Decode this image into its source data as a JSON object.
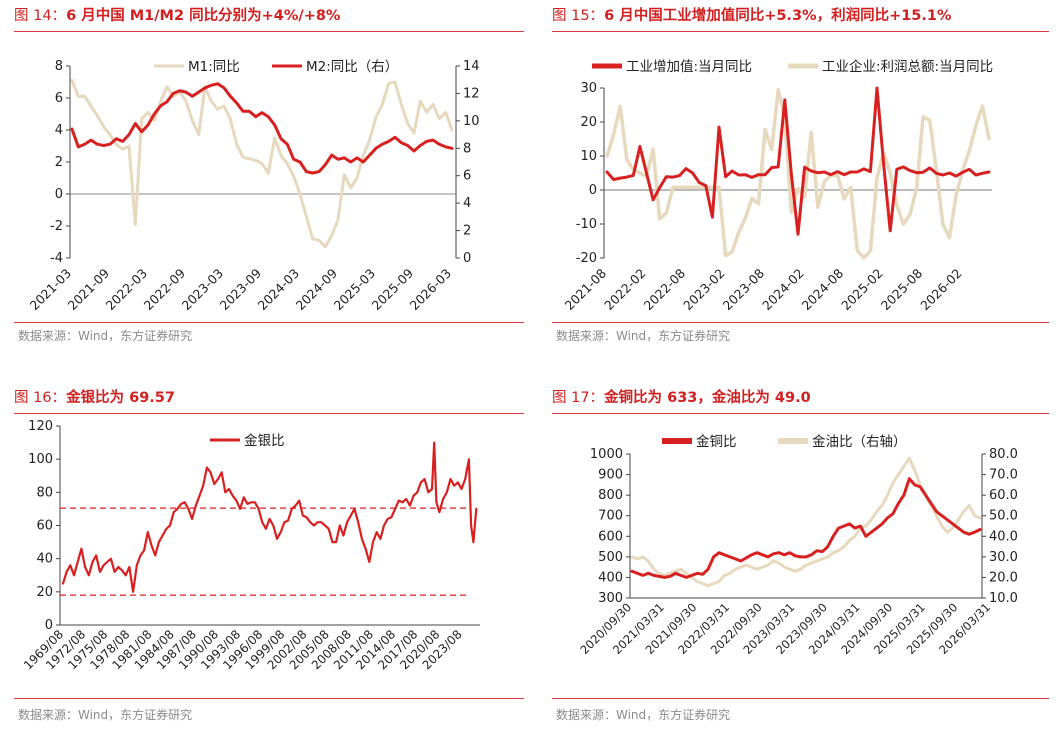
{
  "source_text": "数据来源：Wind，东方证券研究",
  "panels": [
    {
      "fig": "图 14：",
      "title": "6 月中国 M1/M2 同比分别为+4%/+8%",
      "source": "数据来源：Wind，东方证券研究"
    },
    {
      "fig": "图 15：",
      "title": "6 月中国工业增加值同比+5.3%，利润同比+15.1%",
      "source": "数据来源：Wind，东方证券研究"
    },
    {
      "fig": "图 16：",
      "title": "金银比为 69.57",
      "source": "数据来源：Wind，东方证券研究"
    },
    {
      "fig": "图 17：",
      "title": "金铜比为 633，金油比为 49.0",
      "source": "数据来源：Wind，东方证券研究"
    }
  ],
  "chart_data": [
    {
      "type": "line",
      "title": "6 月中国 M1/M2 同比分别为+4%/+8%",
      "x_ticks": [
        "2021-03",
        "2021-09",
        "2022-03",
        "2022-09",
        "2023-03",
        "2023-09",
        "2024-03",
        "2024-09",
        "2025-03",
        "2025-09",
        "2026-03"
      ],
      "ylim_left": [
        -4,
        8
      ],
      "yticks_left": [
        -4,
        -2,
        0,
        2,
        4,
        6,
        8
      ],
      "ylim_right": [
        0,
        14
      ],
      "yticks_right": [
        0,
        2,
        4,
        6,
        8,
        10,
        12,
        14
      ],
      "legend_position": "top",
      "grid": false,
      "colors": {
        "M1": "#e6d9bd",
        "M2": "#d92020"
      },
      "series": [
        {
          "name": "M1:同比",
          "axis": "left",
          "x_start": "2021-03",
          "values": [
            7.1,
            6.1,
            6.1,
            5.5,
            4.9,
            4.2,
            3.7,
            3.1,
            2.8,
            3.0,
            -1.9,
            4.7,
            5.1,
            4.6,
            5.8,
            6.7,
            6.1,
            6.4,
            5.8,
            4.6,
            3.7,
            6.7,
            5.8,
            5.3,
            5.5,
            4.7,
            3.1,
            2.3,
            2.2,
            2.1,
            1.9,
            1.3,
            3.5,
            2.4,
            1.9,
            1.1,
            0.0,
            -1.4,
            -2.8,
            -2.9,
            -3.3,
            -2.6,
            -1.6,
            1.2,
            0.4,
            1.0,
            2.4,
            3.4,
            4.8,
            5.6,
            6.9,
            7.0,
            5.6,
            4.4,
            3.8,
            5.8,
            5.1,
            5.6,
            4.7,
            5.1,
            4.0
          ]
        },
        {
          "name": "M2:同比（右）",
          "axis": "right",
          "x_start": "2021-03",
          "values": [
            9.4,
            8.1,
            8.3,
            8.6,
            8.3,
            8.2,
            8.3,
            8.7,
            8.5,
            9.0,
            9.8,
            9.2,
            9.7,
            10.5,
            11.1,
            11.4,
            12.0,
            12.2,
            12.1,
            11.8,
            12.1,
            12.4,
            12.6,
            12.7,
            12.4,
            11.8,
            11.3,
            10.7,
            10.7,
            10.3,
            10.6,
            10.3,
            9.7,
            8.7,
            8.3,
            7.2,
            7.0,
            6.3,
            6.2,
            6.3,
            6.8,
            7.5,
            7.2,
            7.3,
            7.0,
            7.3,
            7.0,
            7.5,
            8.0,
            8.3,
            8.5,
            8.8,
            8.4,
            8.2,
            7.8,
            8.2,
            8.5,
            8.6,
            8.3,
            8.1,
            8.0
          ]
        }
      ]
    },
    {
      "type": "line",
      "title": "6 月中国工业增加值同比+5.3%，利润同比+15.1%",
      "x_ticks": [
        "2021-08",
        "2022-02",
        "2022-08",
        "2023-02",
        "2023-08",
        "2024-02",
        "2024-08",
        "2025-02",
        "2025-08",
        "2026-02"
      ],
      "ylim": [
        -20,
        30
      ],
      "yticks": [
        -20,
        -10,
        0,
        10,
        20,
        30
      ],
      "legend_position": "top",
      "grid": false,
      "colors": {
        "工业增加值": "#d92020",
        "工业企业利润": "#e6d9bd"
      },
      "series": [
        {
          "name": "工业增加值:当月同比",
          "x_start": "2021-08",
          "values": [
            5.3,
            3.1,
            3.5,
            3.8,
            4.3,
            12.8,
            5.0,
            -2.9,
            0.7,
            3.9,
            3.8,
            4.2,
            6.3,
            5.0,
            2.2,
            1.3,
            -8.0,
            18.5,
            3.9,
            5.6,
            4.4,
            4.5,
            3.7,
            4.5,
            4.5,
            6.6,
            6.8,
            26.5,
            4.5,
            -13.0,
            6.7,
            5.6,
            5.1,
            5.3,
            4.5,
            5.4,
            4.5,
            5.3,
            5.3,
            6.2,
            5.4,
            31.0,
            7.7,
            -12.0,
            6.1,
            6.8,
            5.7,
            5.1,
            5.2,
            6.5,
            4.9,
            4.4,
            5.0,
            4.1,
            5.2,
            6.1,
            4.4,
            4.9,
            5.3
          ]
        },
        {
          "name": "工业企业:利润总额:当月同比",
          "x_start": "2021-08",
          "values": [
            10.0,
            16.3,
            24.6,
            9.0,
            6.0,
            5.0,
            4.0,
            12.0,
            -8.5,
            -6.8,
            0.8,
            0.8,
            0.8,
            0.8,
            0.8,
            0.8,
            0.8,
            0.8,
            -19.3,
            -18.2,
            -12.5,
            -8.3,
            -2.5,
            -4.1,
            17.8,
            11.9,
            29.5,
            21.3,
            -6.6,
            0.4,
            -2.1,
            17.0,
            -5.1,
            2.4,
            4.4,
            4.3,
            -2.6,
            0.7,
            -17.8,
            -25.1,
            -17.9,
            3.6,
            11.1,
            5.0,
            -4.5,
            -10.1,
            -7.2,
            0.4,
            21.6,
            20.5,
            6.0,
            -10.0,
            -14.0,
            -1.5,
            5.8,
            11.4,
            18.8,
            24.7,
            15.1
          ]
        }
      ]
    },
    {
      "type": "line",
      "title": "金银比为 69.57",
      "x_ticks": [
        "1969/08",
        "1972/08",
        "1975/08",
        "1978/08",
        "1981/08",
        "1984/08",
        "1987/08",
        "1990/08",
        "1993/08",
        "1996/08",
        "1999/08",
        "2002/08",
        "2005/08",
        "2008/08",
        "2011/08",
        "2014/08",
        "2017/08",
        "2020/08",
        "2023/08"
      ],
      "ylim": [
        0,
        120
      ],
      "yticks": [
        0,
        20,
        40,
        60,
        80,
        100,
        120
      ],
      "legend_position": "top",
      "grid": false,
      "reference_lines": [
        70.5,
        18.0
      ],
      "colors": {
        "金银比": "#d92020"
      },
      "series": [
        {
          "name": "金银比",
          "x_years": [
            1970.0,
            1970.5,
            1971.0,
            1971.5,
            1972.0,
            1972.5,
            1973.0,
            1973.5,
            1974.0,
            1974.5,
            1975.0,
            1975.5,
            1976.0,
            1976.5,
            1977.0,
            1977.5,
            1978.0,
            1978.5,
            1979.0,
            1979.5,
            1980.0,
            1980.5,
            1981.0,
            1981.5,
            1982.0,
            1982.5,
            1983.0,
            1983.5,
            1984.0,
            1984.5,
            1985.0,
            1985.5,
            1986.0,
            1986.5,
            1987.0,
            1987.5,
            1988.0,
            1988.5,
            1989.0,
            1989.5,
            1990.0,
            1990.5,
            1991.0,
            1991.5,
            1992.0,
            1992.5,
            1993.0,
            1993.5,
            1994.0,
            1994.5,
            1995.0,
            1995.5,
            1996.0,
            1996.5,
            1997.0,
            1997.5,
            1998.0,
            1998.5,
            1999.0,
            1999.5,
            2000.0,
            2000.5,
            2001.0,
            2001.5,
            2002.0,
            2002.5,
            2003.0,
            2003.5,
            2004.0,
            2004.5,
            2005.0,
            2005.5,
            2006.0,
            2006.5,
            2007.0,
            2007.5,
            2008.0,
            2008.5,
            2009.0,
            2009.5,
            2010.0,
            2010.5,
            2011.0,
            2011.5,
            2012.0,
            2012.5,
            2013.0,
            2013.5,
            2014.0,
            2014.5,
            2015.0,
            2015.5,
            2016.0,
            2016.5,
            2017.0,
            2017.5,
            2018.0,
            2018.5,
            2019.0,
            2019.5,
            2020.0,
            2020.3,
            2020.6,
            2021.0,
            2021.5,
            2022.0,
            2022.5,
            2023.0,
            2023.5,
            2024.0,
            2024.5,
            2025.0,
            2025.3,
            2025.6,
            2026.0
          ],
          "values": [
            25,
            32,
            36,
            30,
            38,
            46,
            35,
            30,
            38,
            42,
            32,
            36,
            38,
            40,
            32,
            35,
            33,
            30,
            35,
            20,
            36,
            42,
            45,
            56,
            48,
            42,
            50,
            54,
            58,
            60,
            68,
            70,
            73,
            74,
            70,
            64,
            72,
            78,
            84,
            95,
            92,
            85,
            88,
            92,
            80,
            82,
            78,
            75,
            70,
            77,
            73,
            74,
            74,
            70,
            62,
            58,
            64,
            60,
            52,
            56,
            62,
            63,
            70,
            72,
            75,
            66,
            65,
            62,
            60,
            62,
            62,
            60,
            58,
            50,
            50,
            60,
            54,
            62,
            66,
            70,
            62,
            52,
            46,
            38,
            50,
            56,
            52,
            60,
            64,
            65,
            70,
            75,
            74,
            76,
            72,
            78,
            80,
            86,
            88,
            80,
            82,
            110,
            74,
            68,
            76,
            80,
            88,
            84,
            86,
            82,
            88,
            100,
            60,
            50,
            70
          ]
        }
      ]
    },
    {
      "type": "line",
      "title": "金铜比为 633，金油比为 49.0",
      "x_ticks": [
        "2020/09/30",
        "2021/03/31",
        "2021/09/30",
        "2022/03/31",
        "2022/09/30",
        "2023/03/31",
        "2023/09/30",
        "2024/03/31",
        "2024/09/30",
        "2025/03/31",
        "2025/09/30",
        "2026/03/31"
      ],
      "ylim_left": [
        300,
        1000
      ],
      "yticks_left": [
        300,
        400,
        500,
        600,
        700,
        800,
        900,
        1000
      ],
      "ylim_right": [
        10,
        80
      ],
      "yticks_right": [
        "10.0",
        "20.0",
        "30.0",
        "40.0",
        "50.0",
        "60.0",
        "70.0",
        "80.0"
      ],
      "legend_position": "top",
      "grid": false,
      "colors": {
        "金铜比": "#d92020",
        "金油比": "#e6d9bd"
      },
      "series": [
        {
          "name": "金铜比",
          "axis": "left",
          "x_start": "2020/09/30",
          "step_months": 1,
          "values": [
            430,
            420,
            410,
            420,
            410,
            405,
            400,
            405,
            420,
            410,
            400,
            410,
            420,
            415,
            440,
            500,
            520,
            510,
            500,
            490,
            480,
            495,
            510,
            520,
            510,
            500,
            515,
            520,
            510,
            520,
            505,
            500,
            500,
            510,
            530,
            525,
            550,
            600,
            640,
            650,
            660,
            640,
            650,
            600,
            620,
            640,
            660,
            690,
            710,
            760,
            800,
            880,
            850,
            840,
            800,
            760,
            720,
            700,
            680,
            660,
            640,
            620,
            610,
            620,
            633
          ]
        },
        {
          "name": "金油比（右轴）",
          "axis": "right",
          "x_start": "2020/09/30",
          "step_months": 1,
          "values": [
            30,
            29,
            30,
            28,
            24,
            22,
            21,
            22,
            23,
            24,
            22,
            20,
            18,
            17,
            16,
            17,
            18,
            21,
            22,
            24,
            25,
            26,
            25,
            24,
            25,
            26,
            28,
            27,
            25,
            24,
            23,
            24,
            26,
            27,
            28,
            29,
            30,
            32,
            33,
            35,
            38,
            40,
            44,
            45,
            48,
            52,
            55,
            60,
            66,
            70,
            74,
            78,
            72,
            65,
            60,
            55,
            50,
            45,
            42,
            44,
            48,
            52,
            55,
            50,
            49
          ]
        }
      ]
    }
  ]
}
